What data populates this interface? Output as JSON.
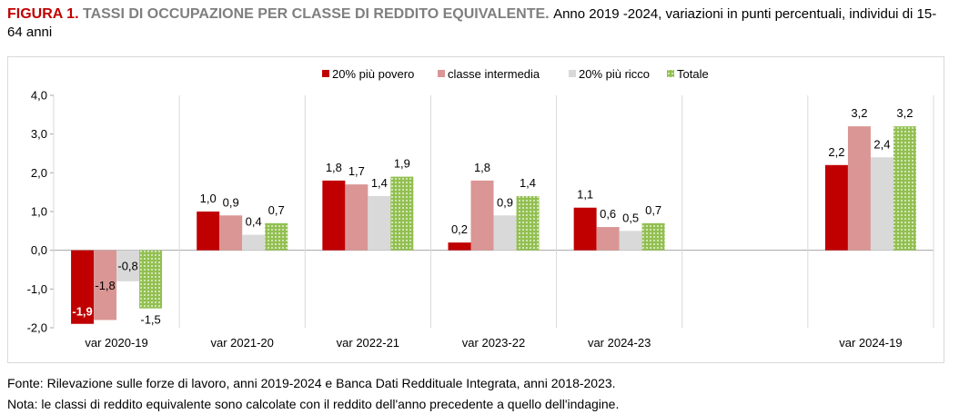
{
  "title": {
    "figure": "FIGURA 1.",
    "heading": "TASSI DI OCCUPAZIONE PER CLASSE DI REDDITO EQUIVALENTE.",
    "subtitle": "Anno 2019 -2024, variazioni in punti percentuali, individui di 15-64 anni"
  },
  "chart_data": {
    "type": "bar",
    "categories": [
      "var 2020-19",
      "var 2021-20",
      "var 2022-21",
      "var 2023-22",
      "var 2024-23",
      "",
      "var 2024-19"
    ],
    "series": [
      {
        "name": "20% più povero",
        "values": [
          -1.9,
          1.0,
          1.8,
          0.2,
          1.1,
          null,
          2.2
        ],
        "labels": [
          "-1,9",
          "1,0",
          "1,8",
          "0,2",
          "1,1",
          "",
          "2,2"
        ],
        "color": "#c00000"
      },
      {
        "name": "classe intermedia",
        "values": [
          -1.8,
          0.9,
          1.7,
          1.8,
          0.6,
          null,
          3.2
        ],
        "labels": [
          "-1,8",
          "0,9",
          "1,7",
          "1,8",
          "0,6",
          "",
          "3,2"
        ],
        "color": "#da9694"
      },
      {
        "name": "20% più ricco",
        "values": [
          -0.8,
          0.4,
          1.4,
          0.9,
          0.5,
          null,
          2.4
        ],
        "labels": [
          "-0,8",
          "0,4",
          "1,4",
          "0,9",
          "0,5",
          "",
          "2,4"
        ],
        "color": "#d9d9d9"
      },
      {
        "name": "Totale",
        "values": [
          -1.5,
          0.7,
          1.9,
          1.4,
          0.7,
          null,
          3.2
        ],
        "labels": [
          "-1,5",
          "0,7",
          "1,9",
          "1,4",
          "0,7",
          "",
          "3,2"
        ],
        "color": "#92c050",
        "pattern": "dotted"
      }
    ],
    "yticks": [
      -2.0,
      -1.0,
      0.0,
      1.0,
      2.0,
      3.0,
      4.0
    ],
    "ytick_labels": [
      "-2,0",
      "-1,0",
      "0,0",
      "1,0",
      "2,0",
      "3,0",
      "4,0"
    ],
    "ylim": [
      -2.0,
      4.0
    ],
    "grid": false,
    "legend": "top"
  },
  "footer": {
    "source": "Fonte: Rilevazione sulle forze di lavoro, anni 2019-2024 e Banca Dati Reddituale Integrata, anni 2018-2023.",
    "note": "Nota: le classi di reddito equivalente sono calcolate con il reddito dell'anno precedente a quello dell'indagine."
  }
}
